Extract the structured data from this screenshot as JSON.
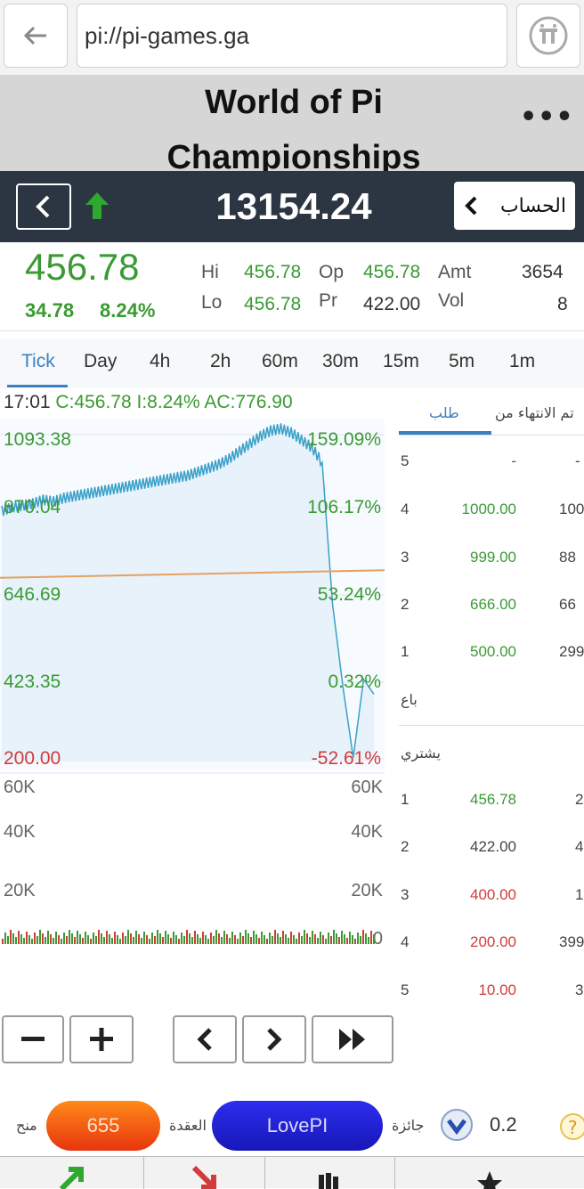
{
  "browser": {
    "url": "pi://pi-games.ga"
  },
  "page": {
    "title_line1": "World of Pi",
    "title_line2": "Championships",
    "more": "•••"
  },
  "index": {
    "value": "13154.24",
    "account_label": "الحساب"
  },
  "quote": {
    "price": "456.78",
    "change": "34.78",
    "change_pct": "8.24%",
    "hi_label": "Hi",
    "hi": "456.78",
    "lo_label": "Lo",
    "lo": "456.78",
    "op_label": "Op",
    "op": "456.78",
    "pr_label": "Pr",
    "pr": "422.00",
    "amt_label": "Amt",
    "amt": "3654",
    "vol_label": "Vol",
    "vol": "8"
  },
  "tabs": [
    "Tick",
    "Day",
    "4h",
    "2h",
    "60m",
    "30m",
    "15m",
    "5m",
    "1m"
  ],
  "info": {
    "time": "17:01",
    "c": "C:456.78",
    "i": "I:8.24%",
    "ac": "AC:776.90"
  },
  "chart_data": {
    "type": "line",
    "y_left_labels": [
      "1093.38",
      "870.04",
      "646.69",
      "423.35",
      "200.00"
    ],
    "y_right_labels": [
      "159.09%",
      "106.17%",
      "53.24%",
      "0.32%",
      "-52.61%"
    ],
    "ylim": [
      200.0,
      1093.38
    ],
    "average_line": [
      620,
      640
    ],
    "volume_labels_left": [
      "60K",
      "40K",
      "20K"
    ],
    "volume_labels_right": [
      "60K",
      "40K",
      "20K",
      "0"
    ],
    "series": [
      {
        "values": [
          870,
          880,
          885,
          890,
          900,
          895,
          905,
          910,
          915,
          920,
          925,
          930,
          935,
          940,
          945,
          950,
          955,
          960,
          965,
          975,
          985,
          995,
          1010,
          1030,
          1050,
          1070,
          1085,
          1090,
          1080,
          1060,
          1040,
          1000,
          620,
          400,
          210,
          420,
          380
        ]
      }
    ],
    "colors": {
      "line": "#3aa0c8",
      "fill": "#e8f2fb",
      "avg": "#e5a060",
      "up": "#3a9a33",
      "down": "#d23b3b"
    }
  },
  "orderbook": {
    "header_expiry": "تم الانتهاء من",
    "header_ask": "طلب",
    "sell_label": "باع",
    "buy_label": "يشتري",
    "asks": [
      {
        "level": "5",
        "price": "-",
        "qty": "-"
      },
      {
        "level": "4",
        "price": "1000.00",
        "qty": "100"
      },
      {
        "level": "3",
        "price": "999.00",
        "qty": "88"
      },
      {
        "level": "2",
        "price": "666.00",
        "qty": "66"
      },
      {
        "level": "1",
        "price": "500.00",
        "qty": "299"
      }
    ],
    "bids": [
      {
        "level": "1",
        "price": "456.78",
        "qty": "2"
      },
      {
        "level": "2",
        "price": "422.00",
        "qty": "4"
      },
      {
        "level": "3",
        "price": "400.00",
        "qty": "1"
      },
      {
        "level": "4",
        "price": "200.00",
        "qty": "399"
      },
      {
        "level": "5",
        "price": "10.00",
        "qty": "3"
      }
    ]
  },
  "bottom": {
    "grant_label": "منح",
    "orange_value": "655",
    "contract_label": "العقدة",
    "blue_value": "LovePI",
    "prize_label": "جائزة",
    "prize_value": "0.2"
  }
}
